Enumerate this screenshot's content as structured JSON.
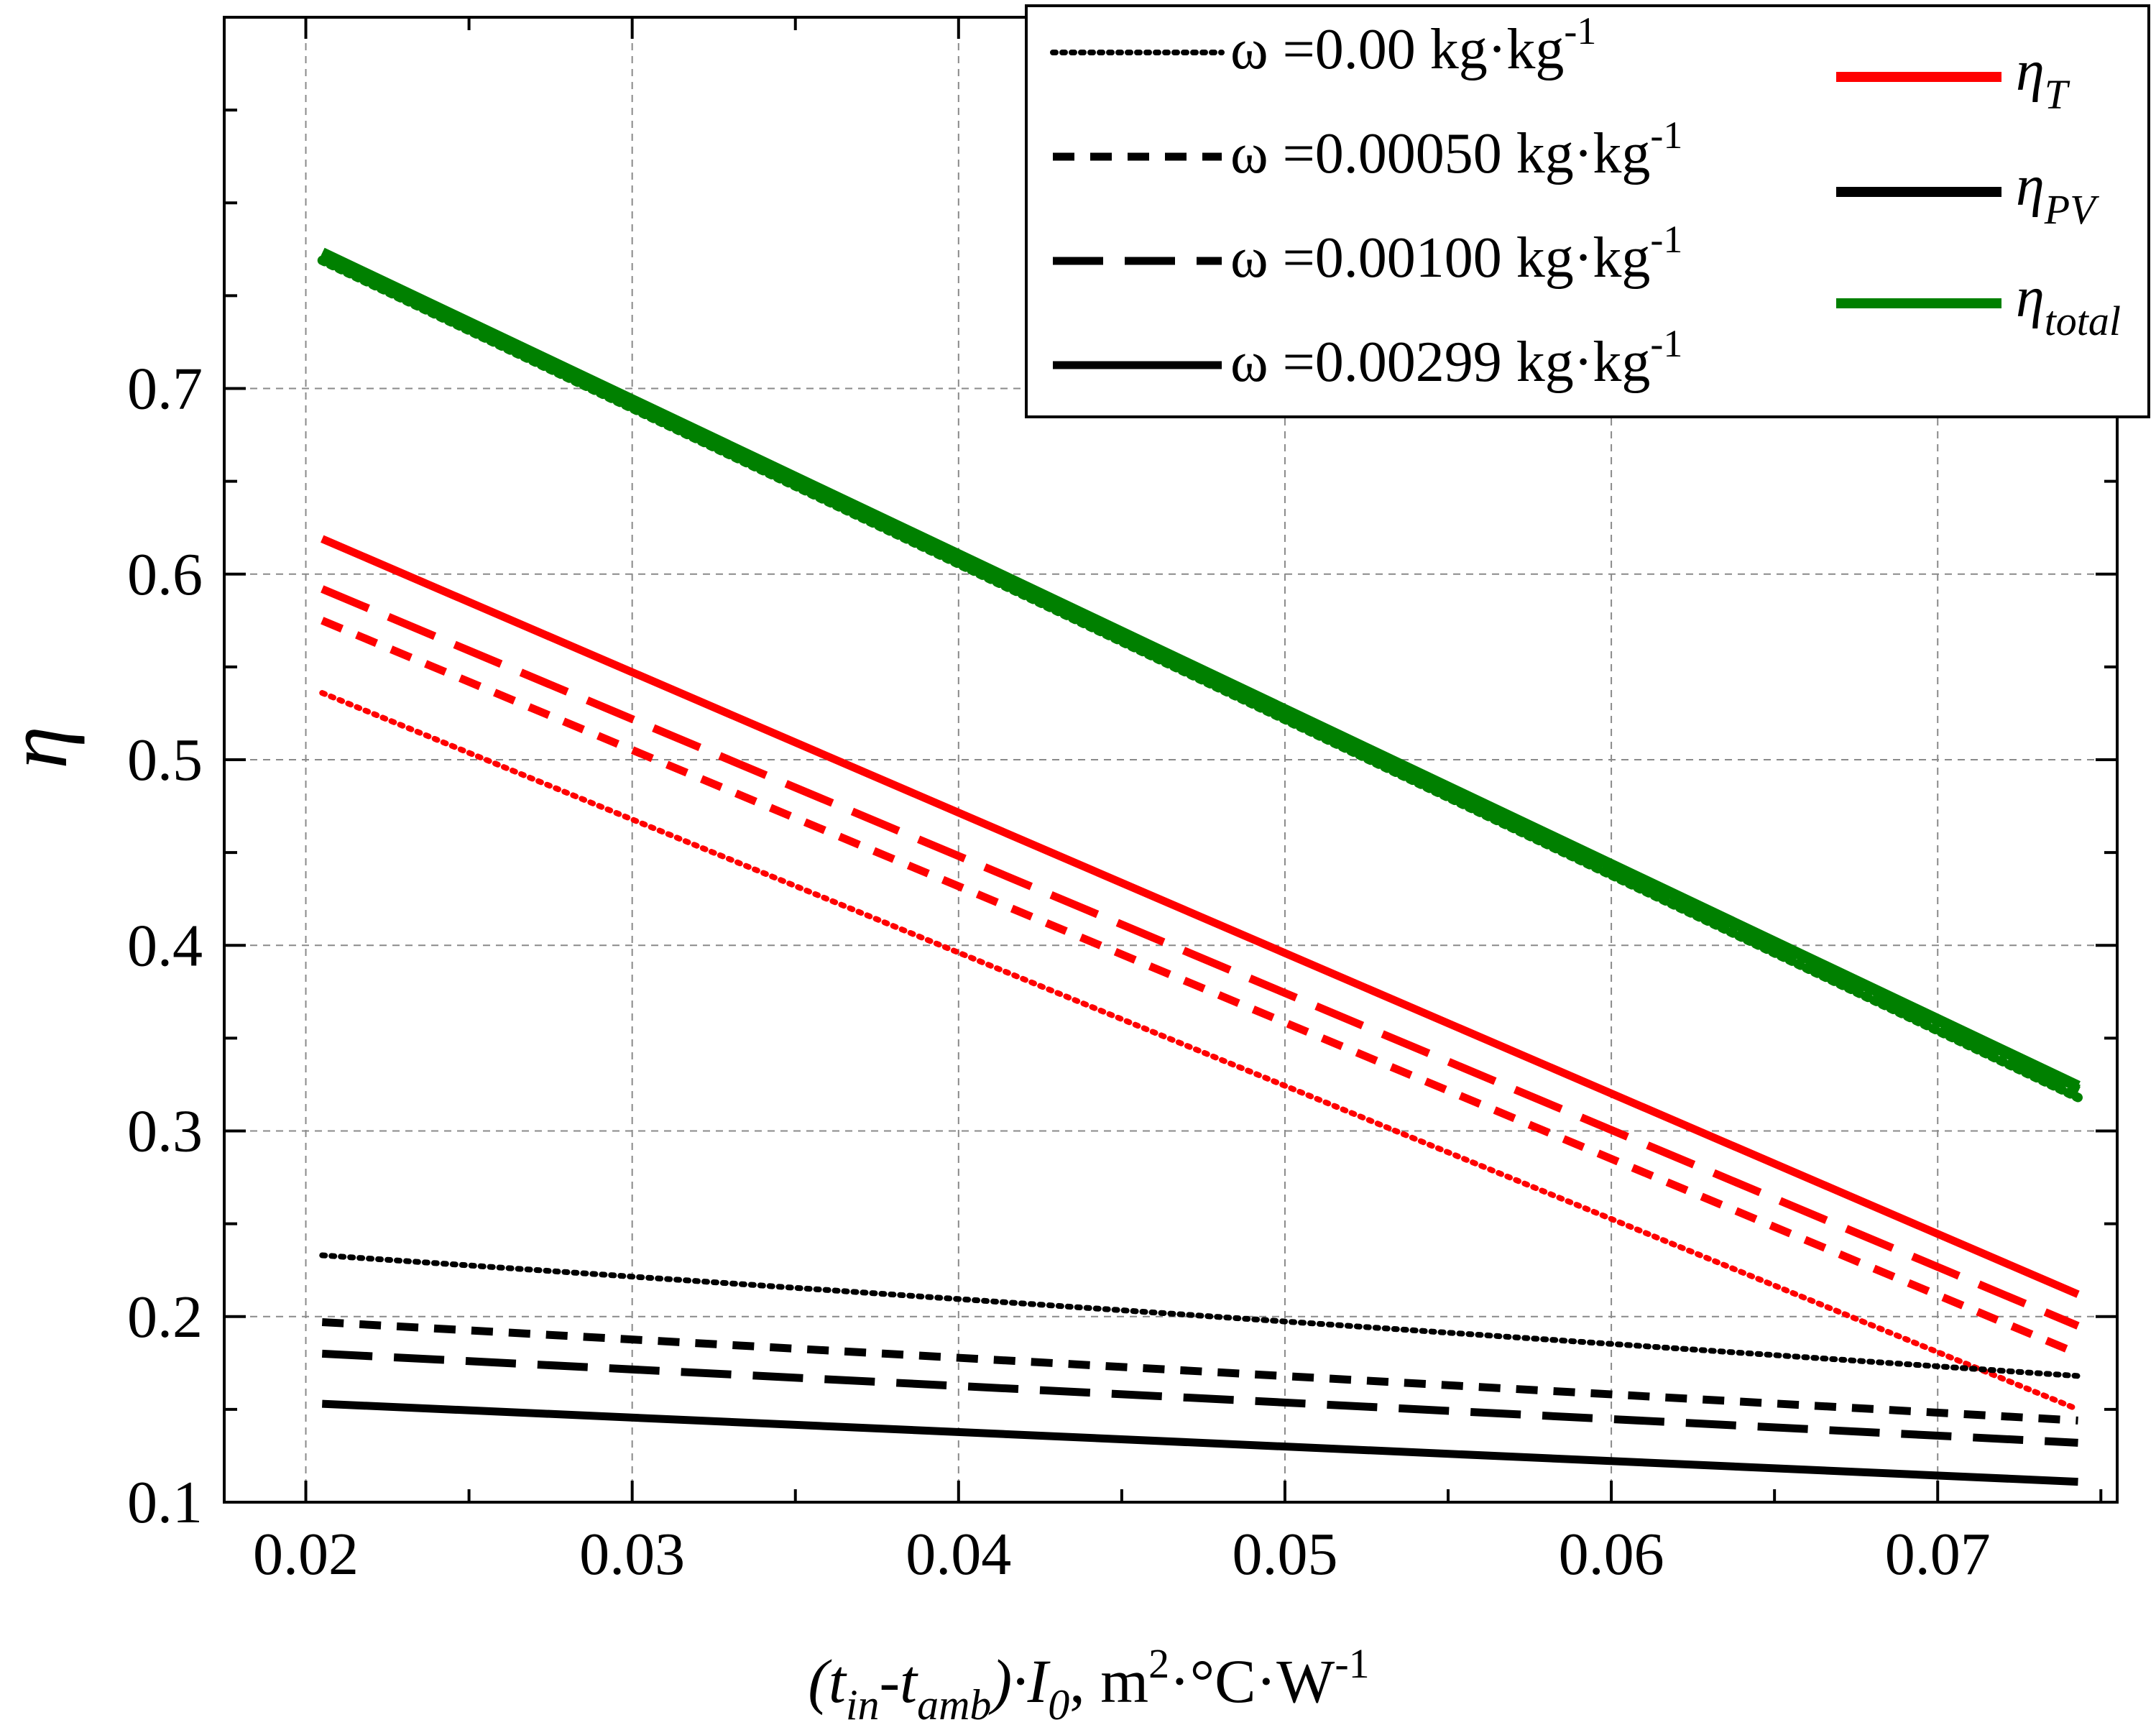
{
  "chart_data": {
    "type": "line",
    "title": "",
    "xlabel": {
      "open_paren": "(",
      "t": "t",
      "t_sub": "in",
      "minus": "-t",
      "amb_sub": "amb",
      "close": ")·I",
      "i_sub": "0",
      "comma": ",  ",
      "unit_m": "m",
      "unit_m_sup": "2",
      "unit_rest": "·°C·W",
      "unit_w_sup": "-1"
    },
    "ylabel": "η",
    "xlim": [
      0.0175,
      0.0755
    ],
    "ylim": [
      0.1,
      0.9
    ],
    "x_ticks": [
      0.02,
      0.03,
      0.04,
      0.05,
      0.06,
      0.07
    ],
    "x_tick_labels": [
      "0.02",
      "0.03",
      "0.04",
      "0.05",
      "0.06",
      "0.07"
    ],
    "y_ticks": [
      0.1,
      0.2,
      0.3,
      0.4,
      0.5,
      0.6,
      0.7
    ],
    "y_tick_labels": [
      "0.1",
      "0.2",
      "0.3",
      "0.4",
      "0.5",
      "0.6",
      "0.7"
    ],
    "grid": true,
    "colors": {
      "thermal": "#ff0000",
      "pv": "#000000",
      "total": "#008000"
    },
    "legend_left": [
      {
        "symbol": "ω",
        "label": "=0.00   kg·kg",
        "sup": "-1",
        "style": "dotted"
      },
      {
        "symbol": "ω",
        "label": "=0.00050 kg·kg",
        "sup": "-1",
        "style": "short-dash"
      },
      {
        "symbol": "ω",
        "label": "=0.00100 kg·kg",
        "sup": "-1",
        "style": "long-dash"
      },
      {
        "symbol": "ω",
        "label": "=0.00299 kg·kg",
        "sup": "-1",
        "style": "solid"
      }
    ],
    "legend_right": [
      {
        "symbol": "η",
        "sub": "T",
        "color": "#ff0000"
      },
      {
        "symbol": "η",
        "sub": "PV",
        "color": "#000000"
      },
      {
        "symbol": "η",
        "sub": "total",
        "color": "#008000"
      }
    ],
    "series": [
      {
        "name": "η_T ω=0.00",
        "group": "thermal",
        "style": "dotted",
        "x": [
          0.0205,
          0.0743
        ],
        "y": [
          0.536,
          0.15
        ]
      },
      {
        "name": "η_T ω=0.00050",
        "group": "thermal",
        "style": "short-dash",
        "x": [
          0.0205,
          0.0743
        ],
        "y": [
          0.575,
          0.18
        ]
      },
      {
        "name": "η_T ω=0.00100",
        "group": "thermal",
        "style": "long-dash",
        "x": [
          0.0205,
          0.0743
        ],
        "y": [
          0.592,
          0.195
        ]
      },
      {
        "name": "η_T ω=0.00299",
        "group": "thermal",
        "style": "solid",
        "x": [
          0.0205,
          0.0743
        ],
        "y": [
          0.619,
          0.212
        ]
      },
      {
        "name": "η_PV ω=0.00",
        "group": "pv",
        "style": "dotted",
        "x": [
          0.0205,
          0.0743
        ],
        "y": [
          0.233,
          0.168
        ]
      },
      {
        "name": "η_PV ω=0.00050",
        "group": "pv",
        "style": "short-dash",
        "x": [
          0.0205,
          0.0743
        ],
        "y": [
          0.197,
          0.144
        ]
      },
      {
        "name": "η_PV ω=0.00100",
        "group": "pv",
        "style": "long-dash",
        "x": [
          0.0205,
          0.0743
        ],
        "y": [
          0.18,
          0.132
        ]
      },
      {
        "name": "η_PV ω=0.00299",
        "group": "pv",
        "style": "solid",
        "x": [
          0.0205,
          0.0743
        ],
        "y": [
          0.153,
          0.111
        ]
      },
      {
        "name": "η_total ω=0.00",
        "group": "total",
        "style": "dotted",
        "x": [
          0.0205,
          0.0743
        ],
        "y": [
          0.769,
          0.318
        ]
      },
      {
        "name": "η_total ω=0.00050",
        "group": "total",
        "style": "short-dash",
        "x": [
          0.0205,
          0.0743
        ],
        "y": [
          0.771,
          0.321
        ]
      },
      {
        "name": "η_total ω=0.00100",
        "group": "total",
        "style": "long-dash",
        "x": [
          0.0205,
          0.0743
        ],
        "y": [
          0.772,
          0.322
        ]
      },
      {
        "name": "η_total ω=0.00299",
        "group": "total",
        "style": "solid",
        "x": [
          0.0205,
          0.0743
        ],
        "y": [
          0.773,
          0.324
        ]
      }
    ]
  }
}
